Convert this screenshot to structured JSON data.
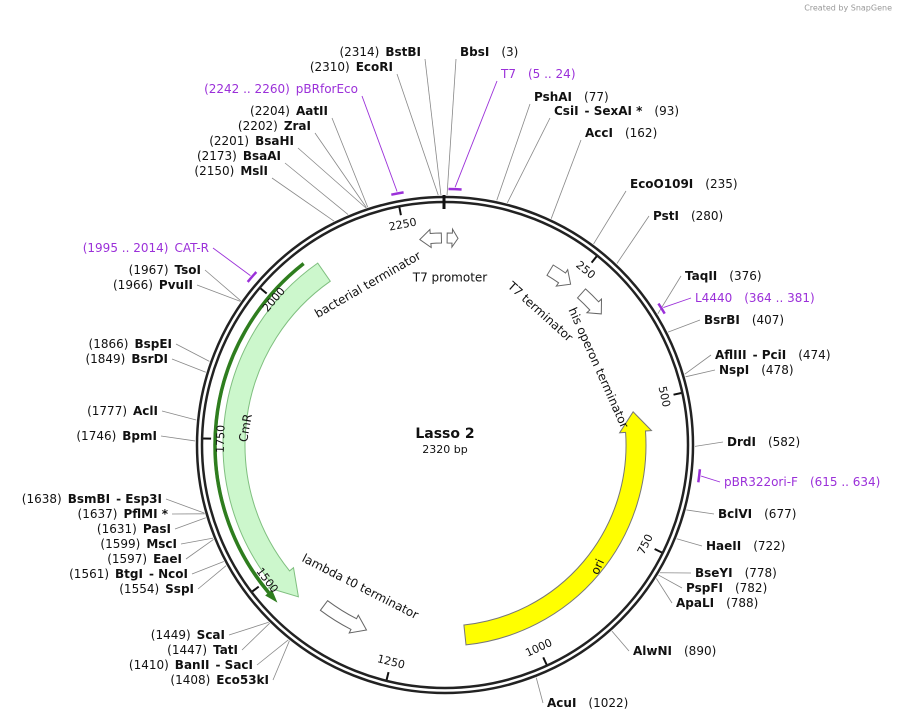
{
  "watermark": "Created by SnapGene",
  "title": "Lasso 2",
  "size_label": "2320 bp",
  "length": 2320,
  "ticks": [
    250,
    500,
    750,
    1000,
    1250,
    1500,
    1750,
    2000,
    2250
  ],
  "features": [
    "bacterial terminator",
    "T7 promoter",
    "T7 terminator",
    "his operon terminator",
    "lambda t0 terminator",
    "CmR",
    "ori"
  ],
  "sites": [
    {
      "names": [
        "BstBI"
      ],
      "position": 2314,
      "label": "(2314)"
    },
    {
      "names": [
        "BbsI"
      ],
      "position": 3,
      "label": "(3)"
    },
    {
      "names": [
        "EcoRI"
      ],
      "position": 2310,
      "label": "(2310)"
    },
    {
      "names": [
        "PshAI"
      ],
      "position": 77,
      "label": "(77)"
    },
    {
      "names": [
        "CsiI",
        "- SexAI *"
      ],
      "position": 93,
      "label": "(93)"
    },
    {
      "names": [
        "AatII"
      ],
      "position": 2204,
      "label": "(2204)"
    },
    {
      "names": [
        "AccI"
      ],
      "position": 162,
      "label": "(162)"
    },
    {
      "names": [
        "ZraI"
      ],
      "position": 2202,
      "label": "(2202)"
    },
    {
      "names": [
        "BsaHI"
      ],
      "position": 2201,
      "label": "(2201)"
    },
    {
      "names": [
        "BsaAI"
      ],
      "position": 2173,
      "label": "(2173)"
    },
    {
      "names": [
        "MslI"
      ],
      "position": 2150,
      "label": "(2150)"
    },
    {
      "names": [
        "EcoO109I"
      ],
      "position": 235,
      "label": "(235)"
    },
    {
      "names": [
        "PstI"
      ],
      "position": 280,
      "label": "(280)"
    },
    {
      "names": [
        "TaqII"
      ],
      "position": 376,
      "label": "(376)"
    },
    {
      "names": [
        "TsoI"
      ],
      "position": 1967,
      "label": "(1967)"
    },
    {
      "names": [
        "PvuII"
      ],
      "position": 1966,
      "label": "(1966)"
    },
    {
      "names": [
        "BsrBI"
      ],
      "position": 407,
      "label": "(407)"
    },
    {
      "names": [
        "BspEI"
      ],
      "position": 1866,
      "label": "(1866)"
    },
    {
      "names": [
        "BsrDI"
      ],
      "position": 1849,
      "label": "(1849)"
    },
    {
      "names": [
        "AflIII",
        "- PciI"
      ],
      "position": 474,
      "label": "(474)"
    },
    {
      "names": [
        "NspI"
      ],
      "position": 478,
      "label": "(478)"
    },
    {
      "names": [
        "AclI"
      ],
      "position": 1777,
      "label": "(1777)"
    },
    {
      "names": [
        "DrdI"
      ],
      "position": 582,
      "label": "(582)"
    },
    {
      "names": [
        "BpmI"
      ],
      "position": 1746,
      "label": "(1746)"
    },
    {
      "names": [
        "BsmBI",
        "- Esp3I"
      ],
      "position": 1638,
      "label": "(1638)"
    },
    {
      "names": [
        "PflMI *"
      ],
      "position": 1637,
      "label": "(1637)"
    },
    {
      "names": [
        "PasI"
      ],
      "position": 1631,
      "label": "(1631)"
    },
    {
      "names": [
        "MscI"
      ],
      "position": 1599,
      "label": "(1599)"
    },
    {
      "names": [
        "EaeI"
      ],
      "position": 1597,
      "label": "(1597)"
    },
    {
      "names": [
        "BtgI",
        "- NcoI"
      ],
      "position": 1561,
      "label": "(1561)"
    },
    {
      "names": [
        "SspI"
      ],
      "position": 1554,
      "label": "(1554)"
    },
    {
      "names": [
        "BclVI"
      ],
      "position": 677,
      "label": "(677)"
    },
    {
      "names": [
        "HaeII"
      ],
      "position": 722,
      "label": "(722)"
    },
    {
      "names": [
        "BseYI"
      ],
      "position": 778,
      "label": "(778)"
    },
    {
      "names": [
        "PspFI"
      ],
      "position": 782,
      "label": "(782)"
    },
    {
      "names": [
        "ApaLI"
      ],
      "position": 788,
      "label": "(788)"
    },
    {
      "names": [
        "AlwNI"
      ],
      "position": 890,
      "label": "(890)"
    },
    {
      "names": [
        "ScaI"
      ],
      "position": 1449,
      "label": "(1449)"
    },
    {
      "names": [
        "TatI"
      ],
      "position": 1447,
      "label": "(1447)"
    },
    {
      "names": [
        "BanII",
        "- SacI"
      ],
      "position": 1410,
      "label": "(1410)"
    },
    {
      "names": [
        "Eco53kI"
      ],
      "position": 1408,
      "label": "(1408)"
    },
    {
      "names": [
        "AcuI"
      ],
      "position": 1022,
      "label": "(1022)"
    }
  ],
  "primers": [
    {
      "name": "T7",
      "start": 5,
      "end": 24,
      "label": "(5 .. 24)"
    },
    {
      "name": "pBRforEco",
      "start": 2242,
      "end": 2260,
      "label": "(2242 .. 2260)"
    },
    {
      "name": "CAT-R",
      "start": 1995,
      "end": 2014,
      "label": "(1995 .. 2014)"
    },
    {
      "name": "L4440",
      "start": 364,
      "end": 381,
      "label": "(364 .. 381)"
    },
    {
      "name": "pBR322ori-F",
      "start": 615,
      "end": 634,
      "label": "(615 .. 634)"
    }
  ]
}
